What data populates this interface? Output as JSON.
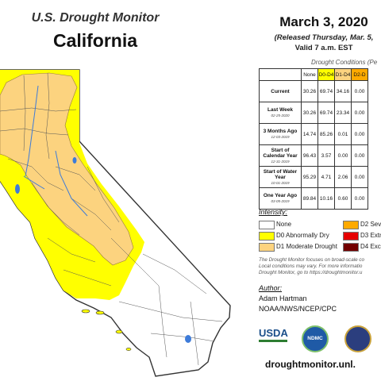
{
  "header": {
    "subtitle": "U.S. Drought Monitor",
    "state": "California",
    "date": "March 3, 2020",
    "released": "(Released Thursday, Mar. 5,",
    "valid": "Valid 7 a.m. EST"
  },
  "conditions": {
    "title": "Drought Conditions (Pe",
    "columns": [
      "None",
      "D0-D4",
      "D1-D4",
      "D2-D"
    ],
    "column_colors": [
      "#ffffff",
      "#ffff00",
      "#fcd37f",
      "#ffaa00"
    ],
    "rows": [
      {
        "label": "Current",
        "date": "",
        "values": [
          "30.26",
          "69.74",
          "34.16",
          "0.00"
        ]
      },
      {
        "label": "Last Week",
        "date": "02-25-2020",
        "values": [
          "30.26",
          "69.74",
          "23.34",
          "0.00"
        ]
      },
      {
        "label": "3 Months Ago",
        "date": "12-03-2019",
        "values": [
          "14.74",
          "85.26",
          "0.01",
          "0.00"
        ]
      },
      {
        "label": "Start of Calendar Year",
        "date": "12-31-2019",
        "values": [
          "96.43",
          "3.57",
          "0.00",
          "0.00"
        ]
      },
      {
        "label": "Start of Water Year",
        "date": "10-01-2019",
        "values": [
          "95.29",
          "4.71",
          "2.06",
          "0.00"
        ]
      },
      {
        "label": "One Year Ago",
        "date": "03-05-2019",
        "values": [
          "89.84",
          "10.16",
          "0.60",
          "0.00"
        ]
      }
    ]
  },
  "intensity": {
    "title": "Intensity:",
    "items": [
      {
        "label": "None",
        "color": "#ffffff"
      },
      {
        "label": "D0 Abnormally Dry",
        "color": "#ffff00"
      },
      {
        "label": "D1 Moderate Drought",
        "color": "#fcd37f"
      },
      {
        "label": "D2 Sev",
        "color": "#ffaa00"
      },
      {
        "label": "D3 Extr",
        "color": "#e60000"
      },
      {
        "label": "D4 Exc",
        "color": "#730000"
      }
    ]
  },
  "note": {
    "line1": "The Drought Monitor focuses on broad-scale co",
    "line2": "Local conditions may vary. For more informatio",
    "line3": "Drought Monitor, go to https://droughtmonitor.u"
  },
  "author": {
    "title": "Author:",
    "name": "Adam Hartman",
    "org": "NOAA/NWS/NCEP/CPC"
  },
  "logos": {
    "usda": "USDA",
    "ndmc": "NDMC"
  },
  "url": "droughtmonitor.unl."
}
